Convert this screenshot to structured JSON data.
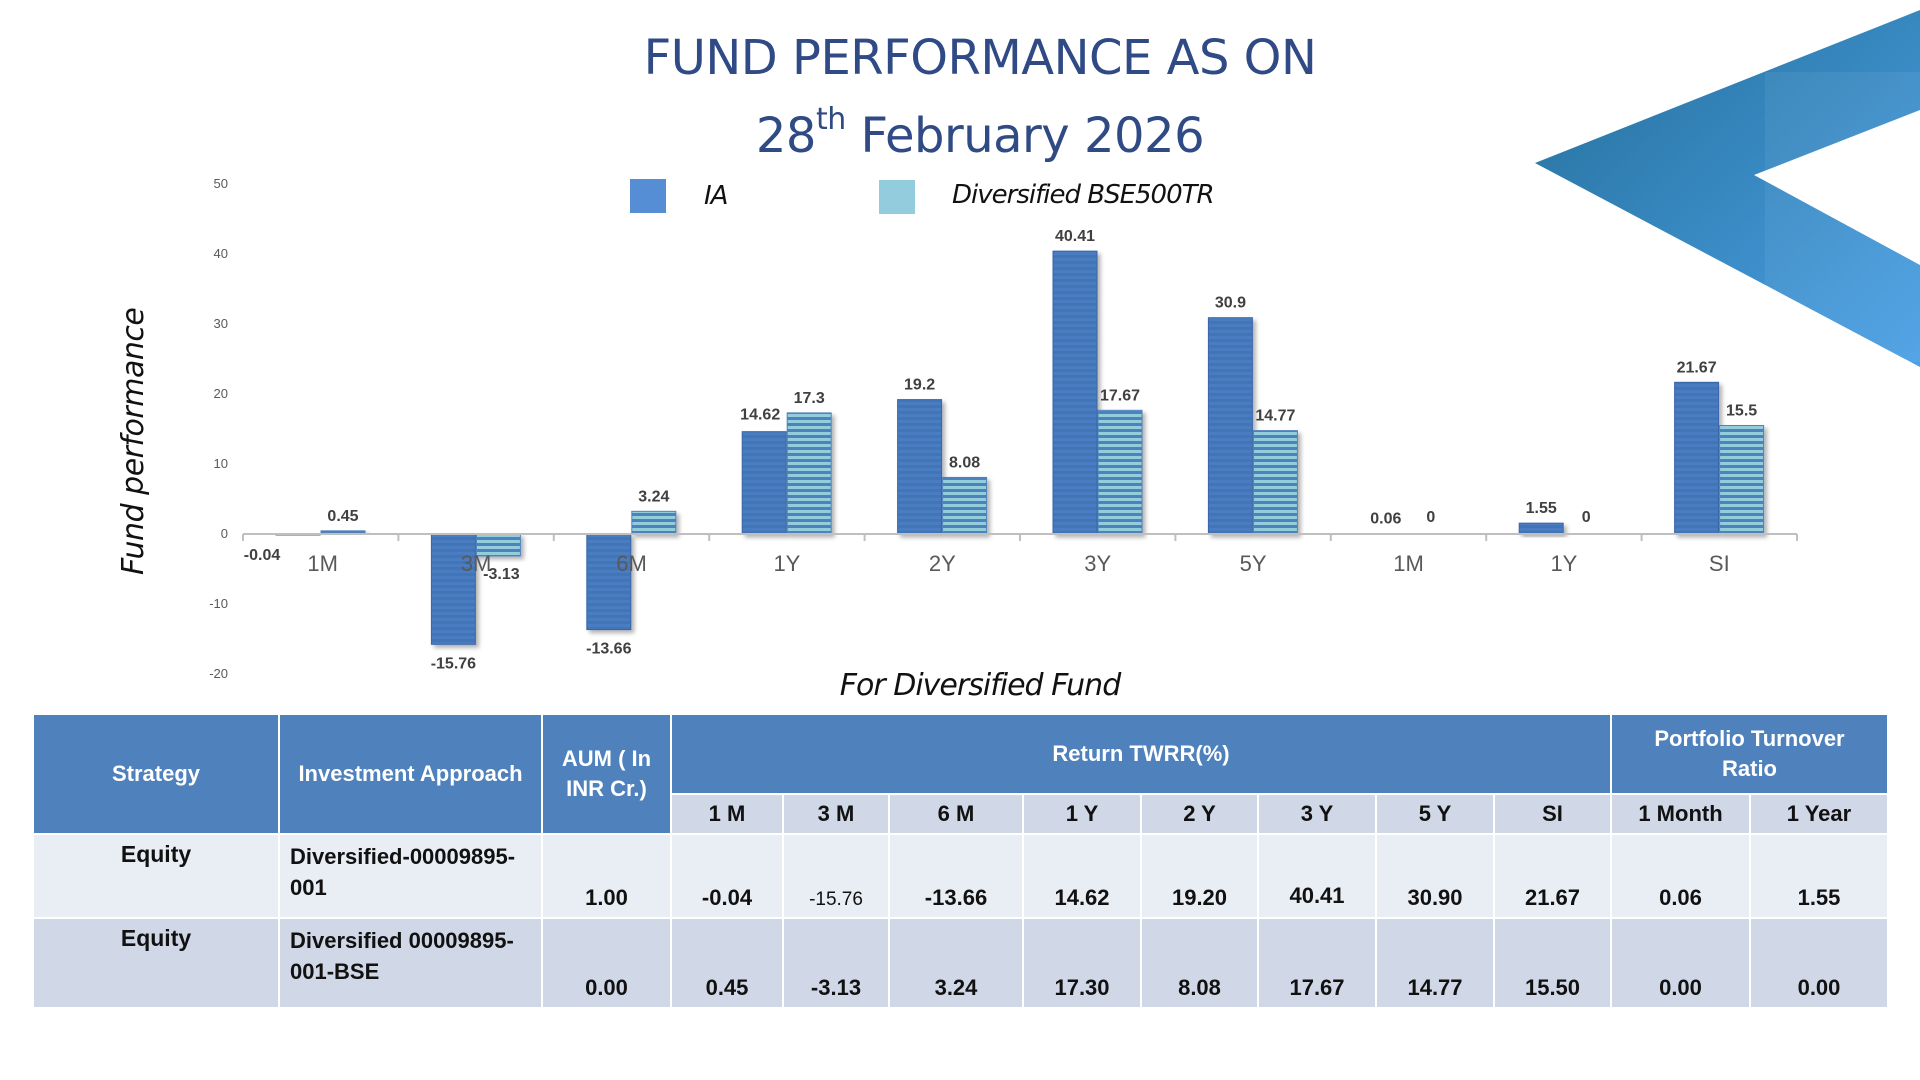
{
  "header": {
    "title_line1": "FUND PERFORMANCE AS ON",
    "date_day": "28",
    "date_suffix": "th",
    "date_rest": " February 2026"
  },
  "colors": {
    "title": "#2f4a85",
    "ia_bar": "#4a7cc0",
    "ia_bar_dark": "#3a66a8",
    "bse_bar": "#92cddc",
    "bse_stripe": "#4f81bd",
    "legend_ia": "#558ed5",
    "legend_bse": "#93cddd",
    "table_header": "#4f81bd",
    "table_sub": "#d0d8e8",
    "table_row1": "#e9edf4",
    "table_row2": "#d0d8e8",
    "chevron_start": "#256f9a",
    "chevron_end": "#4aa0e6"
  },
  "chart_data": {
    "type": "bar",
    "title": "FUND PERFORMANCE AS ON 28th February 2026",
    "xlabel": "For Diversified Fund",
    "ylabel": "Fund performance",
    "ylim": [
      -20,
      50
    ],
    "yticks": [
      50,
      40,
      30,
      20,
      10,
      0,
      -10,
      -20
    ],
    "grid": false,
    "legend_position": "top",
    "categories": [
      "1M",
      "3M",
      "6M",
      "1Y",
      "2Y",
      "3Y",
      "5Y",
      "1M",
      "1Y",
      "SI"
    ],
    "series": [
      {
        "name": "IA",
        "values": [
          -0.04,
          -15.76,
          -13.66,
          14.62,
          19.2,
          40.41,
          30.9,
          0.06,
          1.55,
          21.67
        ],
        "labels": [
          "-0.04",
          "-15.76",
          "-13.66",
          "14.62",
          "19.2",
          "40.41",
          "30.9",
          "0.06",
          "1.55",
          "21.67"
        ]
      },
      {
        "name": "Diversified BSE500TR",
        "values": [
          0.45,
          -3.13,
          3.24,
          17.3,
          8.08,
          17.67,
          14.77,
          0,
          0,
          15.5
        ],
        "labels": [
          "0.45",
          "-3.13",
          "3.24",
          "17.3",
          "8.08",
          "17.67",
          "14.77",
          "0",
          "0",
          "15.5"
        ]
      }
    ]
  },
  "table": {
    "headers": {
      "strategy": "Strategy",
      "approach": "Investment Approach",
      "aum": "AUM ( In INR Cr.)",
      "return_group": "Return  TWRR(%)",
      "turnover_group": "Portfolio Turnover Ratio"
    },
    "sub_headers": [
      "1 M",
      "3 M",
      "6 M",
      "1 Y",
      "2 Y",
      "3 Y",
      "5 Y",
      "SI",
      "1 Month",
      "1 Year"
    ],
    "rows": [
      {
        "strategy": "Equity",
        "approach": "Diversified-00009895-001",
        "aum": "1.00",
        "values": [
          "-0.04",
          "-15.76",
          "-13.66",
          "14.62",
          "19.20",
          "40.41",
          "30.90",
          "21.67",
          "0.06",
          "1.55"
        ]
      },
      {
        "strategy": "Equity",
        "approach": "Diversified 00009895-001-BSE",
        "aum": "0.00",
        "values": [
          "0.45",
          "-3.13",
          "3.24",
          "17.30",
          "8.08",
          "17.67",
          "14.77",
          "15.50",
          "0.00",
          "0.00"
        ]
      }
    ]
  }
}
